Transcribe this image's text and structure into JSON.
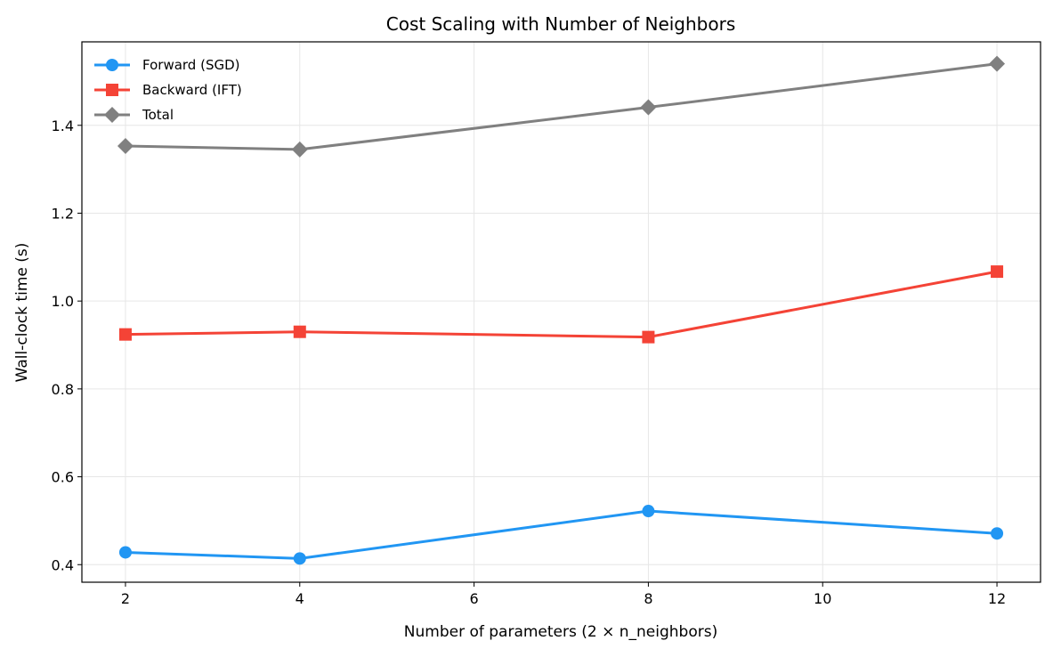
{
  "chart_data": {
    "type": "line",
    "title": "Cost Scaling with Number of Neighbors",
    "xlabel": "Number of parameters (2 × n_neighbors)",
    "ylabel": "Wall-clock time (s)",
    "x": [
      2,
      4,
      8,
      12
    ],
    "xlim": [
      1.5,
      12.5
    ],
    "ylim": [
      0.36,
      1.59
    ],
    "xticks": [
      2,
      4,
      6,
      8,
      10,
      12
    ],
    "yticks": [
      0.4,
      0.6,
      0.8,
      1.0,
      1.2,
      1.4
    ],
    "ytick_labels": [
      "0.4",
      "0.6",
      "0.8",
      "1.0",
      "1.2",
      "1.4"
    ],
    "grid": true,
    "legend_placement": "upper-left",
    "series": [
      {
        "name": "Forward (SGD)",
        "values": [
          0.428,
          0.414,
          0.522,
          0.471
        ],
        "color": "#2196F3",
        "marker": "circle"
      },
      {
        "name": "Backward (IFT)",
        "values": [
          0.924,
          0.93,
          0.918,
          1.067
        ],
        "color": "#F44336",
        "marker": "square"
      },
      {
        "name": "Total",
        "values": [
          1.353,
          1.345,
          1.441,
          1.54
        ],
        "color": "#808080",
        "marker": "diamond"
      }
    ]
  }
}
